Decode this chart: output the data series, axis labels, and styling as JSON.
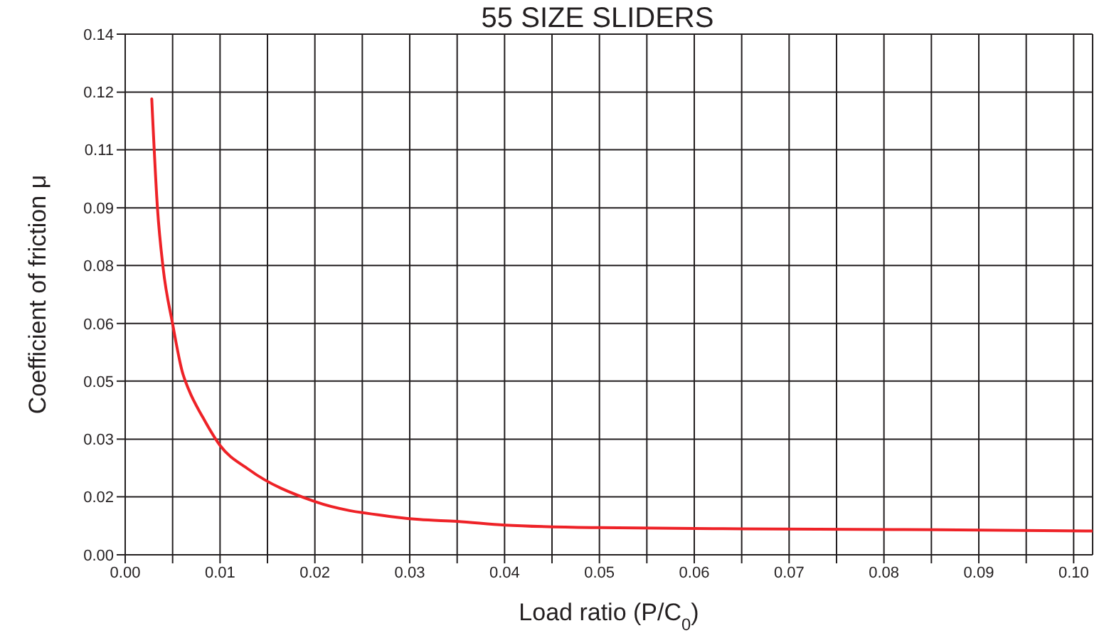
{
  "chart_data": {
    "type": "line",
    "title": "55 SIZE SLIDERS",
    "xlabel": "Load ratio (P/C$_{0}$)",
    "ylabel": "Coefficient of friction μ",
    "x": [
      0.0028,
      0.0034,
      0.004,
      0.005,
      0.006,
      0.0067,
      0.0082,
      0.01,
      0.013,
      0.02,
      0.028,
      0.031,
      0.035,
      0.04,
      0.05,
      0.065,
      0.081,
      0.102
    ],
    "series": [
      {
        "color": "#ee2227",
        "values": [
          0.1226,
          0.0933,
          0.0771,
          0.0621,
          0.0494,
          0.0444,
          0.0369,
          0.0294,
          0.023,
          0.0143,
          0.0103,
          0.0095,
          0.009,
          0.008,
          0.0073,
          0.007,
          0.0068,
          0.0064
        ]
      }
    ],
    "xlim": [
      0,
      0.102
    ],
    "xticks": [
      {
        "value": 0,
        "label": "0.00"
      },
      {
        "value": 0.005,
        "label": null
      },
      {
        "value": 0.01,
        "label": "0.01"
      },
      {
        "value": 0.015,
        "label": null
      },
      {
        "value": 0.02,
        "label": "0.02"
      },
      {
        "value": 0.025,
        "label": null
      },
      {
        "value": 0.03,
        "label": "0.03"
      },
      {
        "value": 0.035,
        "label": null
      },
      {
        "value": 0.04,
        "label": "0.04"
      },
      {
        "value": 0.045,
        "label": null
      },
      {
        "value": 0.05,
        "label": "0.05"
      },
      {
        "value": 0.055,
        "label": null
      },
      {
        "value": 0.06,
        "label": "0.06"
      },
      {
        "value": 0.065,
        "label": null
      },
      {
        "value": 0.07,
        "label": "0.07"
      },
      {
        "value": 0.075,
        "label": null
      },
      {
        "value": 0.08,
        "label": "0.08"
      },
      {
        "value": 0.085,
        "label": null
      },
      {
        "value": 0.09,
        "label": "0.09"
      },
      {
        "value": 0.095,
        "label": null
      },
      {
        "value": 0.1,
        "label": "0.10"
      }
    ],
    "ylim": [
      0,
      0.14
    ],
    "yticks": [
      {
        "value": 0,
        "label": "0.00"
      },
      {
        "value": 0.0156,
        "label": "0.02"
      },
      {
        "value": 0.0311,
        "label": "0.03"
      },
      {
        "value": 0.0467,
        "label": "0.05"
      },
      {
        "value": 0.0622,
        "label": "0.06"
      },
      {
        "value": 0.0778,
        "label": "0.08"
      },
      {
        "value": 0.0933,
        "label": "0.09"
      },
      {
        "value": 0.1089,
        "label": "0.11"
      },
      {
        "value": 0.1244,
        "label": "0.12"
      },
      {
        "value": 0.14,
        "label": "0.14"
      }
    ],
    "grid": true,
    "marker": "none",
    "line_style": "solid"
  }
}
